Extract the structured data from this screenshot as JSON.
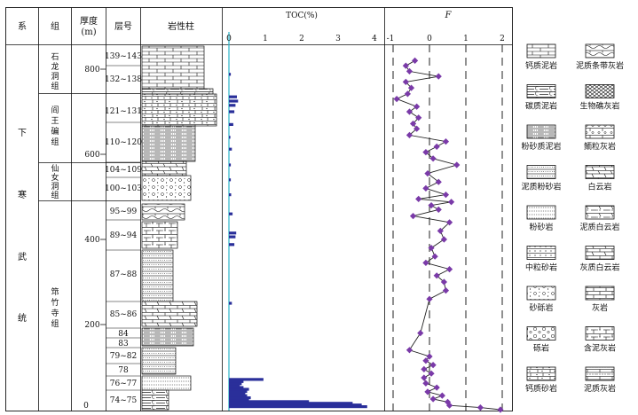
{
  "columns": {
    "system": "系",
    "group": "组",
    "thickness": "厚度",
    "thickness_unit": "(m)",
    "layer": "层号",
    "lithology": "岩性柱",
    "toc": "TOC(%)",
    "f": "F"
  },
  "system_name": [
    "下",
    "寒",
    "武",
    "统"
  ],
  "groups": [
    {
      "chars": [
        "石",
        "龙",
        "洞",
        "组"
      ]
    },
    {
      "chars": [
        "阎",
        "王",
        "碥",
        "组"
      ]
    },
    {
      "chars": [
        "仙",
        "女",
        "洞",
        "组"
      ]
    },
    {
      "chars": [
        "筇",
        "竹",
        "寺",
        "组"
      ]
    }
  ],
  "depth_ticks": [
    "800",
    "600",
    "400",
    "200",
    "0"
  ],
  "layers": [
    "139~143",
    "132~138",
    "121~131",
    "110~120",
    "104~109",
    "100~103",
    "95~99",
    "89~94",
    "87~88",
    "85~86",
    "84",
    "83",
    "79~82",
    "78",
    "76~77",
    "74~75"
  ],
  "legend": [
    {
      "label": "钙质泥岩",
      "pattern": "calc-mud"
    },
    {
      "label": "泥质条带灰岩",
      "pattern": "band-ls"
    },
    {
      "label": "碳质泥岩",
      "pattern": "carb-mud"
    },
    {
      "label": "生物礁灰岩",
      "pattern": "reef"
    },
    {
      "label": "粉砂质泥岩",
      "pattern": "silty-mud"
    },
    {
      "label": "鲕粒灰岩",
      "pattern": "oolite"
    },
    {
      "label": "泥质粉砂岩",
      "pattern": "muddy-silt"
    },
    {
      "label": "白云岩",
      "pattern": "dolomite"
    },
    {
      "label": "粉砂岩",
      "pattern": "siltstone"
    },
    {
      "label": "泥质白云岩",
      "pattern": "muddy-dolo"
    },
    {
      "label": "中粒砂岩",
      "pattern": "sandstone"
    },
    {
      "label": "灰质白云岩",
      "pattern": "lime-dolo"
    },
    {
      "label": "砂砾岩",
      "pattern": "sand-cong"
    },
    {
      "label": "灰岩",
      "pattern": "limestone"
    },
    {
      "label": "砾岩",
      "pattern": "cong"
    },
    {
      "label": "含泥灰岩",
      "pattern": "marly-ls"
    },
    {
      "label": "钙质砂岩",
      "pattern": "calc-sand"
    },
    {
      "label": "泥质灰岩",
      "pattern": "argil-ls"
    }
  ],
  "chart_data": [
    {
      "type": "bar",
      "title": "TOC(%)",
      "orientation": "horizontal",
      "xlim": [
        0,
        4
      ],
      "x_ticks": [
        "0",
        "1",
        "2",
        "3",
        "4"
      ],
      "depth_unit": "m",
      "bar_color": "#2a2f9a",
      "baseline_color": "#2ab3c8",
      "values": [
        {
          "depth": 7,
          "toc": 3.8
        },
        {
          "depth": 11,
          "toc": 3.65
        },
        {
          "depth": 15,
          "toc": 3.4
        },
        {
          "depth": 19,
          "toc": 2.2
        },
        {
          "depth": 24,
          "toc": 0.55
        },
        {
          "depth": 28,
          "toc": 0.6
        },
        {
          "depth": 33,
          "toc": 0.5
        },
        {
          "depth": 38,
          "toc": 0.45
        },
        {
          "depth": 43,
          "toc": 0.5
        },
        {
          "depth": 48,
          "toc": 0.55
        },
        {
          "depth": 52,
          "toc": 0.4
        },
        {
          "depth": 57,
          "toc": 0.3
        },
        {
          "depth": 61,
          "toc": 0.35
        },
        {
          "depth": 66,
          "toc": 0.4
        },
        {
          "depth": 71,
          "toc": 0.95
        },
        {
          "depth": 250,
          "toc": 0.08
        },
        {
          "depth": 388,
          "toc": 0.15
        },
        {
          "depth": 406,
          "toc": 0.18
        },
        {
          "depth": 415,
          "toc": 0.2
        },
        {
          "depth": 460,
          "toc": 0.1
        },
        {
          "depth": 505,
          "toc": 0.06
        },
        {
          "depth": 540,
          "toc": 0.05
        },
        {
          "depth": 575,
          "toc": 0.05
        },
        {
          "depth": 612,
          "toc": 0.08
        },
        {
          "depth": 640,
          "toc": 0.04
        },
        {
          "depth": 670,
          "toc": 0.12
        },
        {
          "depth": 700,
          "toc": 0.15
        },
        {
          "depth": 715,
          "toc": 0.18
        },
        {
          "depth": 725,
          "toc": 0.25
        },
        {
          "depth": 735,
          "toc": 0.22
        },
        {
          "depth": 788,
          "toc": 0.05
        }
      ]
    },
    {
      "type": "line",
      "title": "F",
      "xlim": [
        -1,
        2
      ],
      "x_ticks": [
        "-1",
        "0",
        "1",
        "2"
      ],
      "marker": "diamond",
      "line_color": "#222222",
      "marker_color": "#7a3aa8",
      "points": [
        {
          "depth": 0,
          "f": 1.95
        },
        {
          "depth": 5,
          "f": 1.4
        },
        {
          "depth": 10,
          "f": 0.55
        },
        {
          "depth": 18,
          "f": 0.5
        },
        {
          "depth": 25,
          "f": 0.1
        },
        {
          "depth": 33,
          "f": 0.35
        },
        {
          "depth": 42,
          "f": -0.05
        },
        {
          "depth": 52,
          "f": 0.2
        },
        {
          "depth": 62,
          "f": -0.1
        },
        {
          "depth": 75,
          "f": -0.15
        },
        {
          "depth": 85,
          "f": 0.05
        },
        {
          "depth": 95,
          "f": -0.15
        },
        {
          "depth": 105,
          "f": 0.1
        },
        {
          "depth": 115,
          "f": -0.1
        },
        {
          "depth": 125,
          "f": 0.0
        },
        {
          "depth": 140,
          "f": -0.55
        },
        {
          "depth": 180,
          "f": -0.25
        },
        {
          "depth": 260,
          "f": 0.0
        },
        {
          "depth": 280,
          "f": 0.45
        },
        {
          "depth": 300,
          "f": 0.4
        },
        {
          "depth": 315,
          "f": 0.2
        },
        {
          "depth": 330,
          "f": 0.55
        },
        {
          "depth": 345,
          "f": -0.1
        },
        {
          "depth": 360,
          "f": 0.15
        },
        {
          "depth": 380,
          "f": 0.05
        },
        {
          "depth": 400,
          "f": 0.4
        },
        {
          "depth": 420,
          "f": 0.3
        },
        {
          "depth": 440,
          "f": 0.55
        },
        {
          "depth": 455,
          "f": -0.45
        },
        {
          "depth": 470,
          "f": 0.25
        },
        {
          "depth": 480,
          "f": 0.05
        },
        {
          "depth": 488,
          "f": 0.6
        },
        {
          "depth": 495,
          "f": -0.3
        },
        {
          "depth": 505,
          "f": 0.45
        },
        {
          "depth": 520,
          "f": -0.1
        },
        {
          "depth": 535,
          "f": 0.25
        },
        {
          "depth": 555,
          "f": -0.05
        },
        {
          "depth": 575,
          "f": 0.75
        },
        {
          "depth": 590,
          "f": 0.1
        },
        {
          "depth": 605,
          "f": -0.1
        },
        {
          "depth": 618,
          "f": 0.2
        },
        {
          "depth": 630,
          "f": 0.45
        },
        {
          "depth": 645,
          "f": -0.55
        },
        {
          "depth": 660,
          "f": -0.35
        },
        {
          "depth": 672,
          "f": -0.45
        },
        {
          "depth": 686,
          "f": -0.3
        },
        {
          "depth": 700,
          "f": -0.55
        },
        {
          "depth": 712,
          "f": -0.35
        },
        {
          "depth": 730,
          "f": -0.9
        },
        {
          "depth": 742,
          "f": -0.6
        },
        {
          "depth": 756,
          "f": -0.5
        },
        {
          "depth": 770,
          "f": -0.65
        },
        {
          "depth": 783,
          "f": 0.25
        },
        {
          "depth": 795,
          "f": -0.55
        },
        {
          "depth": 808,
          "f": -0.65
        },
        {
          "depth": 820,
          "f": -0.4
        }
      ]
    }
  ]
}
